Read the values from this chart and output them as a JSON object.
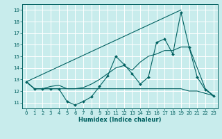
{
  "title": "",
  "xlabel": "Humidex (Indice chaleur)",
  "bg_color": "#c8ecec",
  "grid_color": "#ffffff",
  "line_color": "#006060",
  "xlim": [
    -0.5,
    23.5
  ],
  "ylim": [
    10.5,
    19.5
  ],
  "xticks": [
    0,
    1,
    2,
    3,
    4,
    5,
    6,
    7,
    8,
    9,
    10,
    11,
    12,
    13,
    14,
    15,
    16,
    17,
    18,
    19,
    20,
    21,
    22,
    23
  ],
  "yticks": [
    11,
    12,
    13,
    14,
    15,
    16,
    17,
    18,
    19
  ],
  "line1_x": [
    0,
    1,
    2,
    3,
    4,
    5,
    6,
    7,
    8,
    9,
    10,
    11,
    12,
    13,
    14,
    15,
    16,
    17,
    18,
    19,
    20,
    21,
    22,
    23
  ],
  "line1_y": [
    12.8,
    12.2,
    12.2,
    12.2,
    12.2,
    11.1,
    10.8,
    11.1,
    11.5,
    12.4,
    13.3,
    15.0,
    14.3,
    13.5,
    12.6,
    13.2,
    16.2,
    16.5,
    15.2,
    18.8,
    15.8,
    13.2,
    12.1,
    11.6
  ],
  "line2_x": [
    0,
    19
  ],
  "line2_y": [
    12.8,
    19.0
  ],
  "line3_x": [
    0,
    1,
    2,
    3,
    4,
    5,
    6,
    7,
    8,
    9,
    10,
    11,
    12,
    13,
    14,
    15,
    16,
    17,
    18,
    19,
    20,
    21,
    22,
    23
  ],
  "line3_y": [
    12.8,
    12.2,
    12.2,
    12.2,
    12.2,
    12.2,
    12.2,
    12.2,
    12.2,
    12.2,
    12.2,
    12.2,
    12.2,
    12.2,
    12.2,
    12.2,
    12.2,
    12.2,
    12.2,
    12.2,
    12.0,
    12.0,
    11.8,
    11.6
  ],
  "line4_x": [
    0,
    1,
    2,
    3,
    4,
    5,
    6,
    7,
    8,
    9,
    10,
    11,
    12,
    13,
    14,
    15,
    16,
    17,
    18,
    19,
    20,
    21,
    22,
    23
  ],
  "line4_y": [
    12.8,
    12.2,
    12.2,
    12.4,
    12.5,
    12.2,
    12.2,
    12.3,
    12.6,
    13.0,
    13.5,
    14.0,
    14.2,
    13.8,
    14.5,
    15.0,
    15.2,
    15.5,
    15.5,
    15.8,
    15.8,
    14.0,
    12.2,
    11.6
  ],
  "tick_fontsize": 5.0,
  "xlabel_fontsize": 6.0
}
